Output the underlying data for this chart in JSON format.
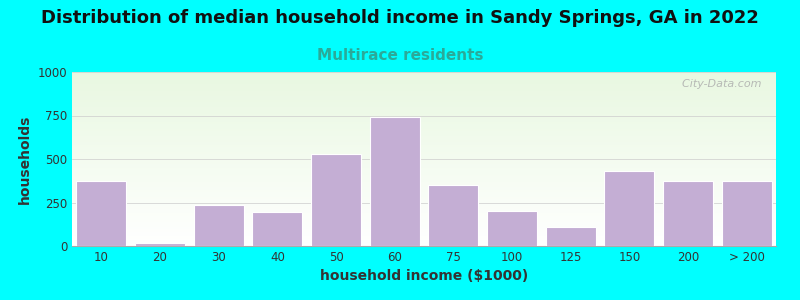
{
  "title": "Distribution of median household income in Sandy Springs, GA in 2022",
  "subtitle": "Multirace residents",
  "xlabel": "household income ($1000)",
  "ylabel": "households",
  "background_color": "#00FFFF",
  "bar_color": "#c4aed4",
  "bar_edge_color": "#ffffff",
  "categories": [
    "10",
    "20",
    "30",
    "40",
    "50",
    "60",
    "75",
    "100",
    "125",
    "150",
    "200",
    "> 200"
  ],
  "values": [
    375,
    20,
    235,
    195,
    530,
    740,
    350,
    200,
    110,
    430,
    375,
    375
  ],
  "ylim": [
    0,
    1000
  ],
  "yticks": [
    0,
    250,
    500,
    750,
    1000
  ],
  "watermark": "  City-Data.com",
  "title_fontsize": 13,
  "subtitle_fontsize": 11,
  "subtitle_color": "#2aaa99",
  "axis_label_fontsize": 10,
  "title_color": "#111111"
}
